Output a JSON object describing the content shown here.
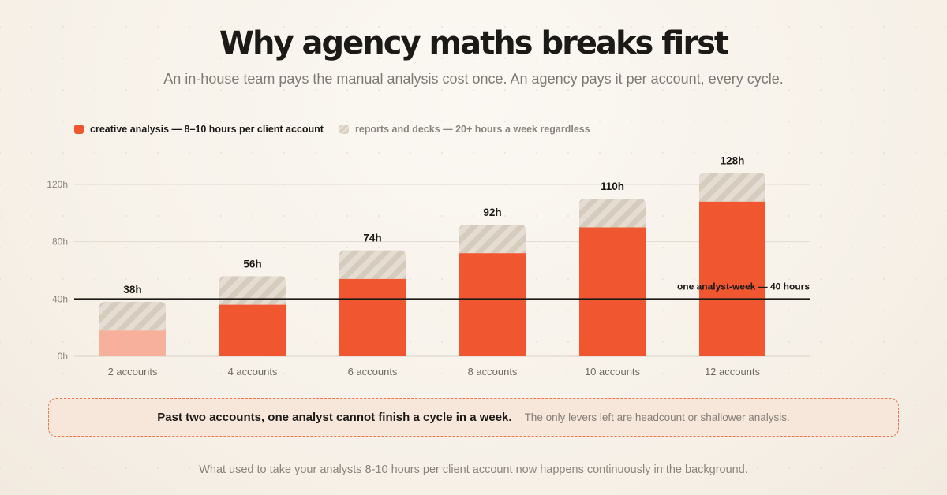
{
  "header": {
    "title": "Why agency maths breaks first",
    "subtitle": "An in-house team pays the manual analysis cost once. An agency pays it per account, every cycle."
  },
  "legend": {
    "analysis_label": "creative analysis — 8–10 hours per client account",
    "reports_label": "reports and decks — 20+ hours a week regardless"
  },
  "colors": {
    "analysis": "#f05630",
    "analysis_under_threshold": "#f6b09b",
    "reports_stripe_a": "#d9cfc2",
    "reports_stripe_b": "#e7dfd3",
    "threshold_line": "#1c1a17"
  },
  "chart_data": {
    "type": "bar",
    "stacked": true,
    "categories": [
      "2 accounts",
      "4 accounts",
      "6 accounts",
      "8 accounts",
      "10 accounts",
      "12 accounts"
    ],
    "series": [
      {
        "name": "creative analysis — 8–10 hours per client account",
        "values": [
          18,
          36,
          54,
          72,
          90,
          108
        ]
      },
      {
        "name": "reports and decks — 20+ hours a week regardless",
        "values": [
          20,
          20,
          20,
          20,
          20,
          20
        ]
      }
    ],
    "totals": [
      "38h",
      "56h",
      "74h",
      "92h",
      "110h",
      "128h"
    ],
    "ylim": [
      0,
      120
    ],
    "yticks": [
      0,
      40,
      80,
      120
    ],
    "ytick_labels": [
      "0h",
      "40h",
      "80h",
      "120h"
    ],
    "threshold": {
      "value": 40,
      "label": "one analyst-week — 40 hours"
    },
    "grid": true,
    "legend_position": "top-left"
  },
  "callout": {
    "main": "Past two accounts, one analyst cannot finish a cycle in a week.",
    "sub": "The only levers left are headcount or shallower analysis."
  },
  "footer": {
    "text": "What used to take your analysts 8-10 hours per client account now happens continuously in the background."
  }
}
